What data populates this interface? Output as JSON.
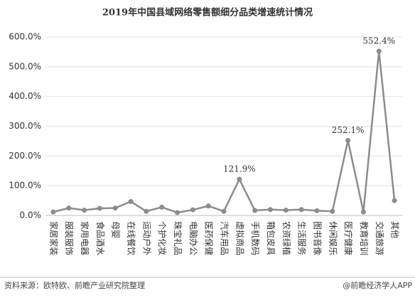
{
  "chart_data": {
    "type": "line",
    "title": "2019年中国县域网络零售额细分品类增速统计情况",
    "categories": [
      "家居家装",
      "服装服饰",
      "家用电器",
      "食品酒水",
      "母婴",
      "在线餐饮",
      "运动户外",
      "个护化妆",
      "珠宝礼品",
      "电脑办公",
      "医药保健",
      "汽车用品",
      "虚拟商品",
      "手机数码",
      "箱包皮具",
      "农资绿植",
      "生活服务",
      "图书音像",
      "休闲娱乐",
      "医疗健康",
      "教育培训",
      "交通旅游",
      "其他"
    ],
    "values": [
      12,
      25,
      18,
      24,
      25,
      47,
      14,
      28,
      10,
      19,
      32,
      14,
      121.9,
      17,
      20,
      18,
      20,
      16,
      14,
      252.1,
      12,
      552.4,
      50
    ],
    "value_labels": [
      null,
      null,
      null,
      null,
      null,
      null,
      null,
      null,
      null,
      null,
      null,
      null,
      "121.9%",
      null,
      null,
      null,
      null,
      null,
      null,
      "252.1%",
      null,
      "552.4%",
      null
    ],
    "color": "#8c8c8c",
    "ylim": [
      0,
      600
    ],
    "yticks": [
      {
        "value": 0,
        "label": "0.0%"
      },
      {
        "value": 100,
        "label": "100.0%"
      },
      {
        "value": 200,
        "label": "200.0%"
      },
      {
        "value": 300,
        "label": "300.0%"
      },
      {
        "value": 400,
        "label": "400.0%"
      },
      {
        "value": 500,
        "label": "500.0%"
      },
      {
        "value": 600,
        "label": "600.0%"
      }
    ],
    "grid": true,
    "source": "资料来源：欧特欧、前瞻产业研究院整理",
    "credit": "@前瞻经济学人APP"
  }
}
